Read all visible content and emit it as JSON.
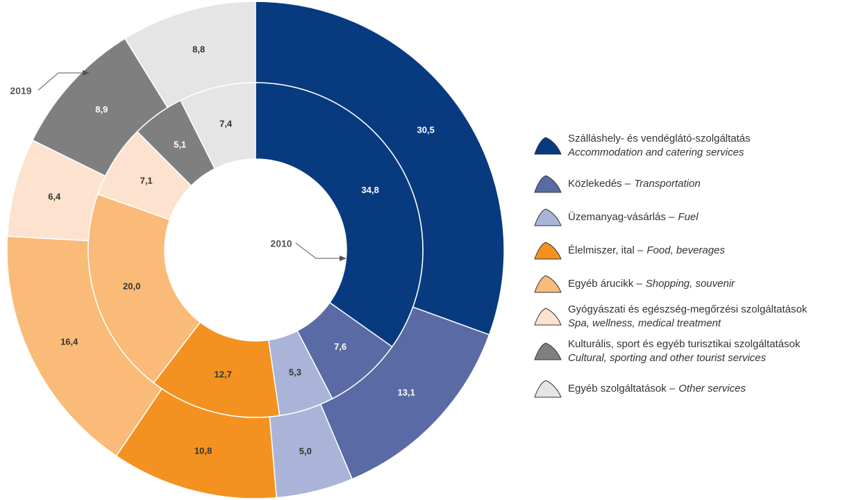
{
  "chart_data": {
    "type": "donut",
    "categories": [
      {
        "name": "Szálláshely- és vendéglátó-szolgáltatás",
        "translation": "Accommodation and catering services"
      },
      {
        "name": "Közlekedés –",
        "translation": "Transportation"
      },
      {
        "name": "Üzemanyag-vásárlás –",
        "translation": "Fuel"
      },
      {
        "name": "Élelmiszer, ital –",
        "translation": "Food, beverages"
      },
      {
        "name": "Egyéb árucikk –",
        "translation": "Shopping, souvenir"
      },
      {
        "name": "Gyógyászati és egészség-megőrzési szolgáltatások",
        "translation": "Spa, wellness, medical treatment"
      },
      {
        "name": "Kulturális, sport és egyéb turisztikai szolgáltatások",
        "translation": "Cultural, sporting and other tourist services"
      },
      {
        "name": "Egyéb szolgáltatások –",
        "translation": "Other services"
      }
    ],
    "colors": [
      "#083a80",
      "#5a6aa4",
      "#a9b4d8",
      "#f39220",
      "#fabb78",
      "#fde3cf",
      "#7f7f7f",
      "#e5e5e6"
    ],
    "series": [
      {
        "name": "2010",
        "values": [
          34.8,
          7.6,
          5.3,
          12.7,
          20.0,
          7.1,
          5.1,
          7.4
        ],
        "value_labels": [
          "34,8",
          "7,6",
          "5,3",
          "12,7",
          "20,0",
          "7,1",
          "5,1",
          "7,4"
        ]
      },
      {
        "name": "2019",
        "values": [
          30.5,
          13.1,
          5.0,
          10.8,
          16.4,
          6.4,
          8.9,
          8.8
        ],
        "value_labels": [
          "30,5",
          "13,1",
          "5,0",
          "10,8",
          "16,4",
          "6,4",
          "8,9",
          "8,8"
        ]
      }
    ]
  }
}
